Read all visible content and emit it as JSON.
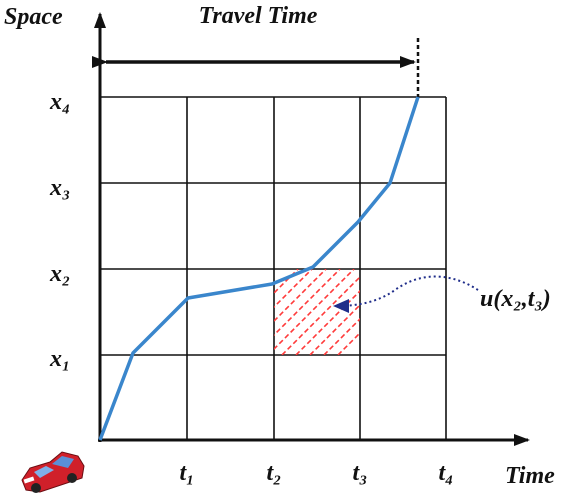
{
  "axes": {
    "y_label": "Space",
    "x_label": "Time"
  },
  "header": {
    "title": "Travel Time"
  },
  "y_ticks": [
    "x₁",
    "x₂",
    "x₃",
    "x₄"
  ],
  "x_ticks": [
    "t₁",
    "t₂",
    "t₃",
    "t₄"
  ],
  "annotation": "u(x₂,t₃)"
}
